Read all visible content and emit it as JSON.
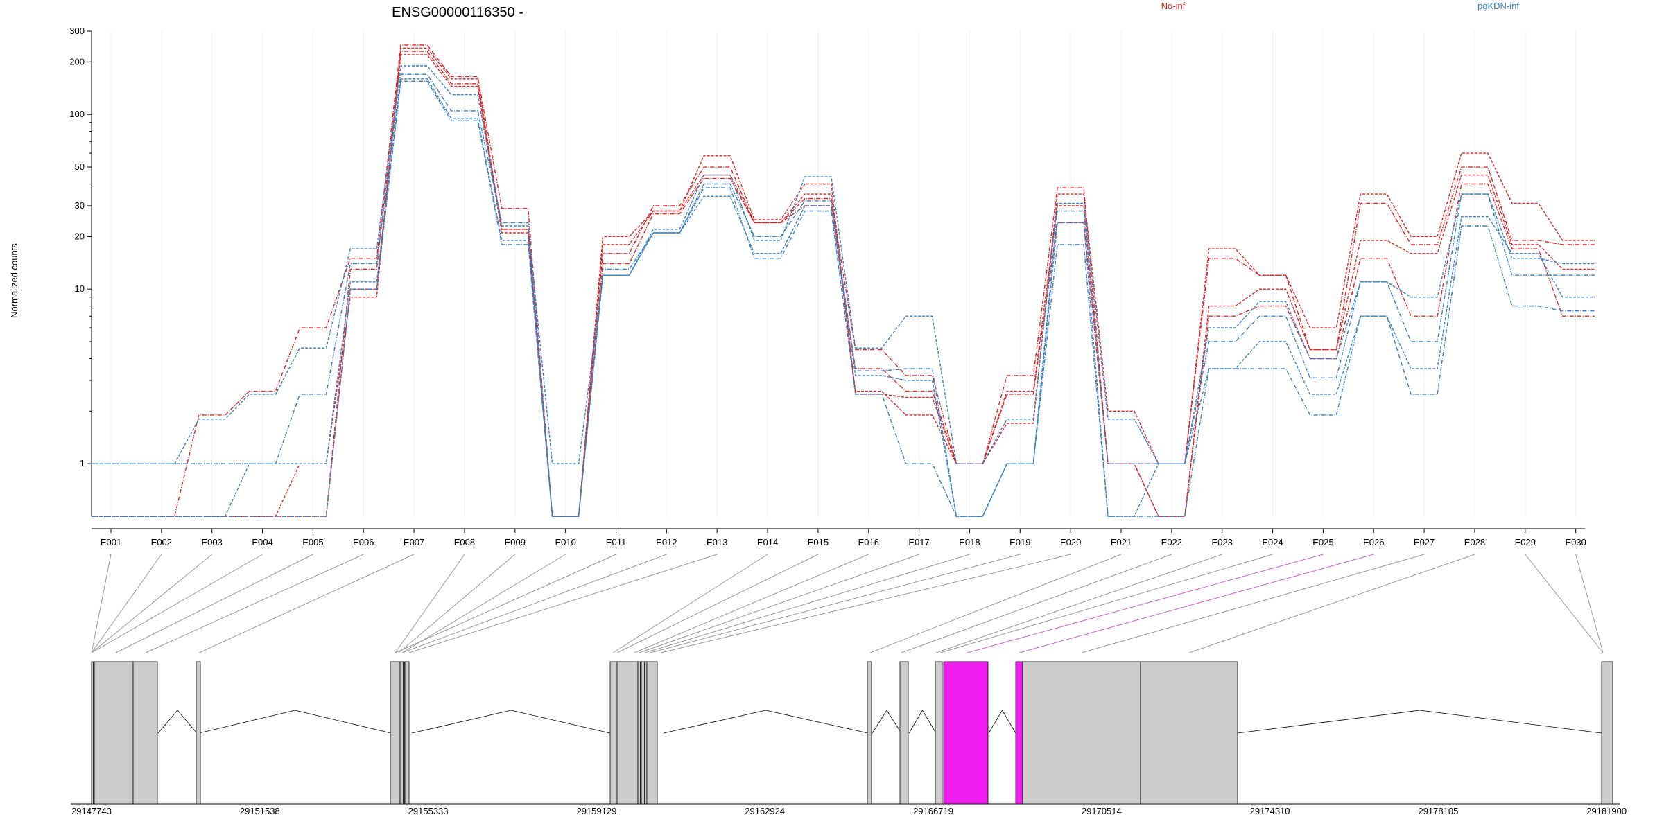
{
  "title": "ENSG00000116350 -",
  "chart_data": {
    "type": "line",
    "title": "ENSG00000116350 -",
    "ylabel": "Normalized counts",
    "ylim": [
      0.5,
      300
    ],
    "y_scale": "log",
    "y_ticks": [
      1,
      10,
      20,
      30,
      50,
      100,
      200,
      300
    ],
    "grid": true,
    "legend_position": "top",
    "categories": [
      "E001",
      "E002",
      "E003",
      "E004",
      "E005",
      "E006",
      "E007",
      "E008",
      "E009",
      "E010",
      "E011",
      "E012",
      "E013",
      "E014",
      "E015",
      "E016",
      "E017",
      "E018",
      "E019",
      "E020",
      "E021",
      "E022",
      "E023",
      "E024",
      "E025",
      "E026",
      "E027",
      "E028",
      "E029",
      "E030"
    ],
    "groups": [
      {
        "name": "No-inf",
        "color": "#d62728"
      },
      {
        "name": "pgKDN-inf",
        "color": "#3a7fc1"
      }
    ],
    "series": [
      {
        "group": "No-inf",
        "values": [
          0.5,
          0.5,
          0.5,
          0.5,
          1.0,
          9,
          240,
          160,
          22,
          0.5,
          20,
          28,
          58,
          25,
          40,
          2.5,
          2.4,
          1.0,
          1.7,
          35,
          2.0,
          1.0,
          17,
          12,
          6.0,
          35,
          20,
          60,
          31,
          19
        ]
      },
      {
        "group": "No-inf",
        "values": [
          0.5,
          0.5,
          1.9,
          2.6,
          6.0,
          15,
          250,
          165,
          29,
          0.5,
          16,
          30,
          50,
          24,
          33,
          4.5,
          3.2,
          1.0,
          3.2,
          38,
          1.0,
          1.0,
          15,
          12,
          4.5,
          31,
          18,
          50,
          19,
          18
        ]
      },
      {
        "group": "No-inf",
        "values": [
          0.5,
          0.5,
          0.5,
          0.5,
          0.5,
          10,
          220,
          145,
          21,
          0.5,
          18,
          28,
          45,
          24,
          35,
          2.6,
          1.9,
          1.0,
          2.6,
          30,
          1.0,
          0.5,
          8.0,
          10,
          4.5,
          19,
          16,
          45,
          18,
          13
        ]
      },
      {
        "group": "No-inf",
        "values": [
          0.5,
          0.5,
          0.5,
          0.5,
          0.5,
          13,
          230,
          150,
          22,
          0.5,
          14,
          27,
          43,
          24,
          30,
          3.5,
          2.6,
          1.0,
          2.5,
          24,
          1.0,
          0.5,
          7.0,
          8.0,
          4.0,
          15,
          7.0,
          40,
          17,
          7.0
        ]
      },
      {
        "group": "pgKDN-inf",
        "values": [
          1.0,
          1.0,
          1.8,
          2.5,
          4.6,
          17,
          190,
          130,
          23,
          1.0,
          12,
          22,
          45,
          19,
          44,
          4.6,
          7.0,
          1.0,
          1.8,
          31,
          1.8,
          1.0,
          6.0,
          8.5,
          4.0,
          11,
          9.0,
          35,
          15,
          14
        ]
      },
      {
        "group": "pgKDN-inf",
        "values": [
          1.0,
          1.0,
          1.0,
          1.0,
          2.5,
          14,
          170,
          105,
          24,
          0.5,
          12,
          21,
          40,
          20,
          32,
          3.4,
          3.5,
          0.5,
          1.0,
          28,
          1.0,
          1.0,
          5.0,
          7.0,
          3.1,
          11,
          5.0,
          35,
          12,
          12
        ]
      },
      {
        "group": "pgKDN-inf",
        "values": [
          0.5,
          0.5,
          0.5,
          1.0,
          1.0,
          11,
          160,
          95,
          19,
          0.5,
          12,
          21,
          34,
          16,
          30,
          3.2,
          3.0,
          0.5,
          1.0,
          24,
          0.5,
          1.0,
          3.5,
          5.0,
          2.5,
          7.0,
          3.5,
          26,
          16,
          9.0
        ]
      },
      {
        "group": "pgKDN-inf",
        "values": [
          0.5,
          0.5,
          0.5,
          0.5,
          0.5,
          10,
          155,
          92,
          18,
          0.5,
          13,
          21,
          38,
          15,
          28,
          2.5,
          1.0,
          0.5,
          1.0,
          18,
          0.5,
          0.5,
          3.5,
          3.5,
          1.9,
          7.0,
          2.5,
          23,
          8.0,
          7.5
        ]
      }
    ]
  },
  "gene_model": {
    "coordinate_labels": [
      "29147743",
      "29151538",
      "29155333",
      "29159129",
      "29162924",
      "29166719",
      "29170514",
      "29174310",
      "29178105",
      "29181900"
    ],
    "genomic_range": [
      29147743,
      29181900
    ],
    "exon_fill": "#cccccc",
    "highlight_fill": "#ee1fee",
    "connector_color": "#999999",
    "highlight_connector_color": "#cc66cc",
    "highlighted_exons": [
      "E025",
      "E026"
    ]
  }
}
